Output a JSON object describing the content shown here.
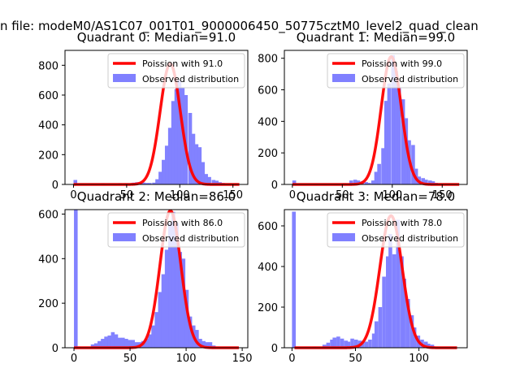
{
  "figure": {
    "suptitle": "n file: modeM0/AS1C07_001T01_9000006450_50775cztM0_level2_quad_clean"
  },
  "colors": {
    "model": "#ff0000",
    "observed": "#8080ff",
    "axis": "#000000",
    "background": "#ffffff"
  },
  "chart_data": [
    {
      "type": "bar",
      "title": "Quadrant 0: Median=91.0",
      "xlim": [
        -8,
        164
      ],
      "ylim": [
        0,
        900
      ],
      "xticks": [
        0,
        50,
        100,
        150
      ],
      "yticks": [
        0,
        200,
        400,
        600,
        800
      ],
      "legend": [
        "Poission with 91.0",
        "Observed distribution"
      ],
      "legend_position": "top-right",
      "median": 91.0,
      "peak": 810,
      "sigma": 9.5,
      "bin_width": 3.2,
      "bins": [
        [
          0,
          30
        ],
        [
          3,
          5
        ],
        [
          6,
          5
        ],
        [
          16,
          5
        ],
        [
          26,
          8
        ],
        [
          36,
          5
        ],
        [
          42,
          8
        ],
        [
          48,
          8
        ],
        [
          55,
          12
        ],
        [
          58,
          15
        ],
        [
          61,
          15
        ],
        [
          64,
          13
        ],
        [
          67,
          10
        ],
        [
          70,
          10
        ],
        [
          74,
          12
        ],
        [
          77,
          35
        ],
        [
          80,
          85
        ],
        [
          83,
          165
        ],
        [
          86,
          260
        ],
        [
          89,
          380
        ],
        [
          92,
          560
        ],
        [
          95,
          640
        ],
        [
          98,
          700
        ],
        [
          101,
          650
        ],
        [
          104,
          600
        ],
        [
          108,
          480
        ],
        [
          111,
          340
        ],
        [
          114,
          270
        ],
        [
          117,
          250
        ],
        [
          120,
          150
        ],
        [
          123,
          70
        ],
        [
          126,
          50
        ],
        [
          130,
          30
        ],
        [
          133,
          25
        ],
        [
          136,
          15
        ],
        [
          139,
          10
        ],
        [
          142,
          5
        ]
      ]
    },
    {
      "type": "bar",
      "title": "Quadrant 1: Median=99.0",
      "xlim": [
        -8,
        175
      ],
      "ylim": [
        0,
        850
      ],
      "xticks": [
        0,
        50,
        100,
        150
      ],
      "yticks": [
        0,
        200,
        400,
        600,
        800
      ],
      "legend": [
        "Poission with 99.0",
        "Observed distribution"
      ],
      "legend_position": "top-right",
      "median": 99.0,
      "peak": 810,
      "sigma": 10.0,
      "bin_width": 3.4,
      "bins": [
        [
          0,
          25
        ],
        [
          4,
          5
        ],
        [
          22,
          5
        ],
        [
          30,
          5
        ],
        [
          42,
          5
        ],
        [
          50,
          8
        ],
        [
          57,
          25
        ],
        [
          61,
          30
        ],
        [
          64,
          25
        ],
        [
          68,
          20
        ],
        [
          72,
          15
        ],
        [
          75,
          10
        ],
        [
          79,
          25
        ],
        [
          82,
          80
        ],
        [
          85,
          130
        ],
        [
          89,
          230
        ],
        [
          92,
          530
        ],
        [
          95,
          640
        ],
        [
          99,
          820
        ],
        [
          102,
          720
        ],
        [
          105,
          610
        ],
        [
          109,
          540
        ],
        [
          112,
          420
        ],
        [
          115,
          280
        ],
        [
          119,
          250
        ],
        [
          122,
          100
        ],
        [
          125,
          50
        ],
        [
          129,
          40
        ],
        [
          132,
          30
        ],
        [
          136,
          25
        ],
        [
          139,
          20
        ],
        [
          142,
          10
        ],
        [
          146,
          5
        ]
      ]
    },
    {
      "type": "bar",
      "title": "Quadrant 2: Median=86.0",
      "xlim": [
        -8,
        155
      ],
      "ylim": [
        0,
        620
      ],
      "xticks": [
        0,
        50,
        100,
        150
      ],
      "yticks": [
        0,
        200,
        400,
        600
      ],
      "legend": [
        "Poission with 86.0",
        "Observed distribution"
      ],
      "legend_position": "top-right",
      "median": 86.0,
      "peak": 615,
      "sigma": 9.3,
      "bin_width": 3.0,
      "bins": [
        [
          0,
          620
        ],
        [
          3,
          5
        ],
        [
          15,
          15
        ],
        [
          18,
          20
        ],
        [
          21,
          30
        ],
        [
          24,
          40
        ],
        [
          27,
          50
        ],
        [
          30,
          55
        ],
        [
          33,
          70
        ],
        [
          36,
          60
        ],
        [
          39,
          45
        ],
        [
          42,
          45
        ],
        [
          45,
          40
        ],
        [
          48,
          35
        ],
        [
          51,
          35
        ],
        [
          54,
          25
        ],
        [
          57,
          25
        ],
        [
          60,
          30
        ],
        [
          63,
          40
        ],
        [
          66,
          60
        ],
        [
          69,
          100
        ],
        [
          72,
          160
        ],
        [
          75,
          250
        ],
        [
          78,
          330
        ],
        [
          81,
          440
        ],
        [
          84,
          560
        ],
        [
          87,
          610
        ],
        [
          90,
          560
        ],
        [
          93,
          430
        ],
        [
          96,
          400
        ],
        [
          99,
          260
        ],
        [
          102,
          140
        ],
        [
          105,
          100
        ],
        [
          108,
          80
        ],
        [
          111,
          40
        ],
        [
          114,
          30
        ],
        [
          117,
          25
        ],
        [
          120,
          25
        ],
        [
          123,
          10
        ],
        [
          126,
          5
        ]
      ]
    },
    {
      "type": "bar",
      "title": "Quadrant 3: Median=78.0",
      "xlim": [
        -6,
        138
      ],
      "ylim": [
        0,
        680
      ],
      "xticks": [
        0,
        50,
        100
      ],
      "yticks": [
        0,
        200,
        400,
        600
      ],
      "legend": [
        "Poission with 78.0",
        "Observed distribution"
      ],
      "legend_position": "top-right",
      "median": 78.0,
      "peak": 650,
      "sigma": 8.8,
      "bin_width": 2.7,
      "bins": [
        [
          0,
          670
        ],
        [
          3,
          5
        ],
        [
          16,
          5
        ],
        [
          24,
          15
        ],
        [
          27,
          25
        ],
        [
          30,
          40
        ],
        [
          32,
          50
        ],
        [
          35,
          55
        ],
        [
          38,
          45
        ],
        [
          41,
          35
        ],
        [
          43,
          30
        ],
        [
          46,
          45
        ],
        [
          49,
          40
        ],
        [
          52,
          35
        ],
        [
          54,
          30
        ],
        [
          57,
          30
        ],
        [
          60,
          40
        ],
        [
          63,
          70
        ],
        [
          65,
          130
        ],
        [
          68,
          200
        ],
        [
          71,
          350
        ],
        [
          74,
          450
        ],
        [
          76,
          560
        ],
        [
          79,
          460
        ],
        [
          82,
          630
        ],
        [
          85,
          450
        ],
        [
          87,
          340
        ],
        [
          90,
          240
        ],
        [
          93,
          160
        ],
        [
          95,
          100
        ],
        [
          98,
          60
        ],
        [
          101,
          40
        ],
        [
          104,
          30
        ],
        [
          106,
          20
        ],
        [
          109,
          15
        ],
        [
          112,
          5
        ]
      ]
    }
  ]
}
